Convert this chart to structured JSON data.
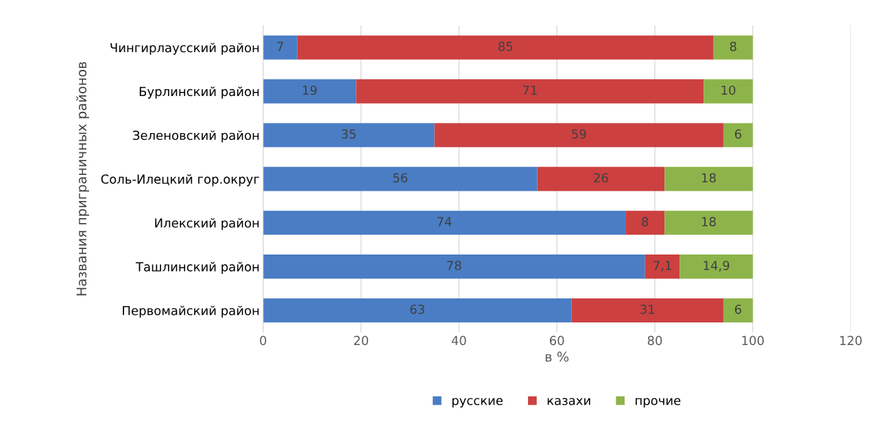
{
  "chart_data": {
    "type": "bar",
    "orientation": "horizontal",
    "stacked": true,
    "ylabel": "Названия приграничных районов",
    "xlabel": "в %",
    "categories": [
      "Чингирлаусский район",
      "Бурлинский район",
      "Зеленовский район",
      "Соль-Илецкий гор.округ",
      "Илекский район",
      "Ташлинский район",
      "Первомайский район"
    ],
    "series": [
      {
        "name": "русские",
        "color": "#4a7dc4",
        "values": [
          7,
          19,
          35,
          56,
          74,
          78,
          63
        ],
        "value_labels": [
          "7",
          "19",
          "35",
          "56",
          "74",
          "78",
          "63"
        ]
      },
      {
        "name": "казахи",
        "color": "#cc4040",
        "values": [
          85,
          71,
          59,
          26,
          8,
          7.1,
          31
        ],
        "value_labels": [
          "85",
          "71",
          "59",
          "26",
          "8",
          "7,1",
          "31"
        ]
      },
      {
        "name": "прочие",
        "color": "#8db44a",
        "values": [
          8,
          10,
          6,
          18,
          18,
          14.9,
          6
        ],
        "value_labels": [
          "8",
          "10",
          "6",
          "18",
          "18",
          "14,9",
          "6"
        ]
      }
    ],
    "xlim": [
      0,
      120
    ],
    "xticks": [
      0,
      20,
      40,
      60,
      80,
      100,
      120
    ],
    "grid": "x",
    "legend": "bottom"
  }
}
